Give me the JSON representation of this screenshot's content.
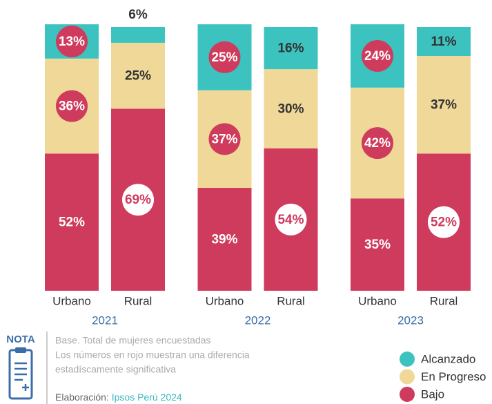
{
  "chart_data": {
    "type": "stacked_bar",
    "categories": [
      "Urbano",
      "Rural",
      "Urbano",
      "Rural",
      "Urbano",
      "Rural"
    ],
    "groups": [
      "2021",
      "2022",
      "2023"
    ],
    "ylim": [
      0,
      100
    ],
    "series": [
      {
        "name": "Bajo",
        "color": "#cf3b5c",
        "values": [
          52,
          69,
          39,
          54,
          35,
          52
        ],
        "value_labels": [
          "52%",
          "69%",
          "39%",
          "54%",
          "35%",
          "52%"
        ],
        "highlight": [
          false,
          true,
          false,
          true,
          false,
          true
        ]
      },
      {
        "name": "En Progreso",
        "color": "#f0d898",
        "values": [
          36,
          25,
          37,
          30,
          42,
          37
        ],
        "value_labels": [
          "36%",
          "25%",
          "37%",
          "30%",
          "42%",
          "37%"
        ],
        "highlight": [
          true,
          false,
          true,
          false,
          true,
          false
        ]
      },
      {
        "name": "Alcanzado",
        "color": "#3cc3c0",
        "values": [
          13,
          6,
          25,
          16,
          24,
          11
        ],
        "value_labels": [
          "13%",
          "6%",
          "25%",
          "16%",
          "24%",
          "11%"
        ],
        "highlight": [
          true,
          false,
          true,
          false,
          true,
          false
        ]
      }
    ],
    "legend": "bottom-right",
    "note": {
      "badge": "NOTA",
      "lines": [
        "Base. Total de mujeres encuestadas",
        "Los números en rojo muestran una diferencia",
        "estadíscamente significativa"
      ],
      "credit_prefix": "Elaboración: ",
      "credit_source": "Ipsos Perú 2024"
    }
  }
}
